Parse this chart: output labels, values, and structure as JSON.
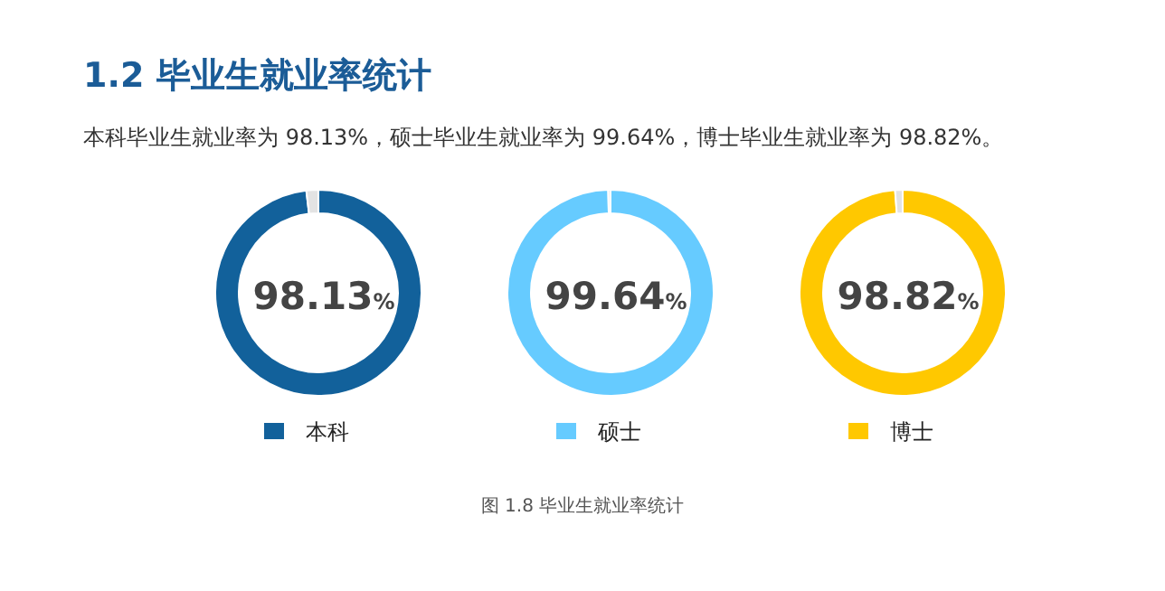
{
  "chart_data": [
    {
      "type": "other",
      "title": "1.2 毕业生就业率统计",
      "subtitle": "本科毕业生就业率为 98.13%，硕士毕业生就业率为 99.64%，博士毕业生就业率为 98.82%。",
      "annotations": [
        "图 1.8 毕业生就业率统计"
      ]
    },
    {
      "type": "donut",
      "categories": [
        "本科",
        null
      ],
      "values": [
        98.13,
        1.87
      ],
      "colors": [
        "#12619b",
        "#e3e3e3"
      ],
      "value_labels": [
        "98.13%",
        null
      ],
      "legend": "bottom"
    },
    {
      "type": "donut",
      "categories": [
        "硕士",
        null
      ],
      "values": [
        99.64,
        0.36
      ],
      "colors": [
        "#66cbff",
        "#e3e3e3"
      ],
      "value_labels": [
        "99.64%",
        null
      ],
      "legend": "bottom"
    },
    {
      "type": "donut",
      "categories": [
        "博士",
        null
      ],
      "values": [
        98.82,
        1.18
      ],
      "colors": [
        "#ffc800",
        "#e3e3e3"
      ],
      "value_labels": [
        "98.82%",
        null
      ],
      "legend": "bottom"
    }
  ]
}
